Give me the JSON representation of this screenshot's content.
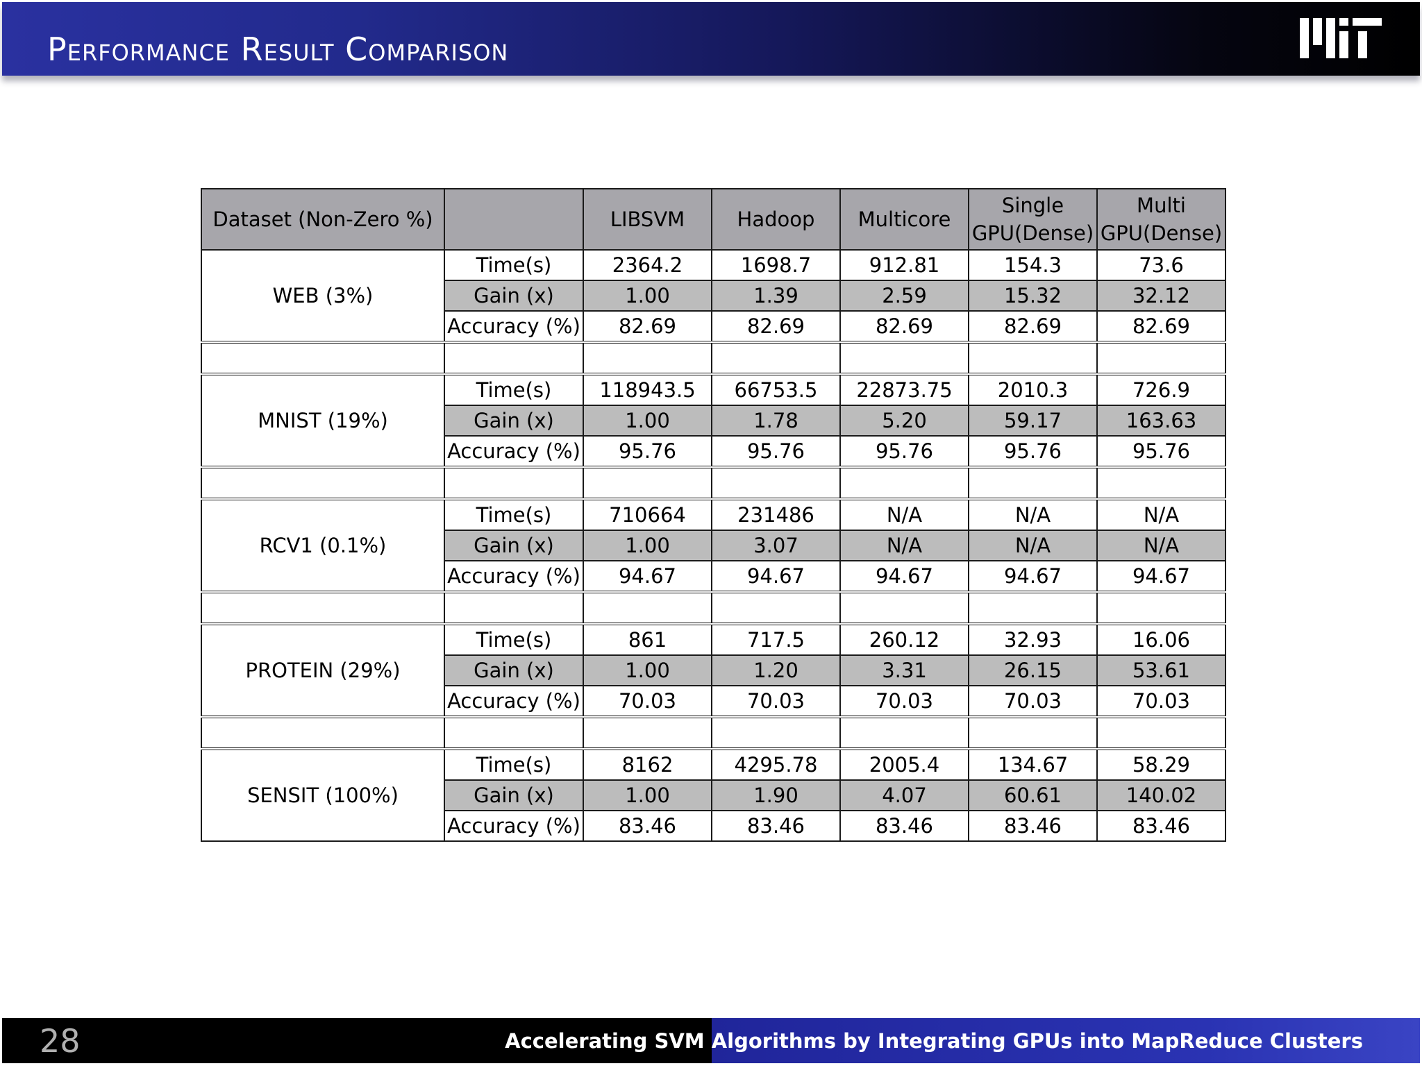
{
  "header": {
    "title": "Performance Result Comparison"
  },
  "table": {
    "headers": {
      "dataset": "Dataset (Non-Zero %)",
      "metric": "",
      "columns": [
        {
          "line1": "LIBSVM",
          "line2": ""
        },
        {
          "line1": "Hadoop",
          "line2": ""
        },
        {
          "line1": "Multicore",
          "line2": ""
        },
        {
          "line1": "Single",
          "line2": "GPU(Dense)"
        },
        {
          "line1": "Multi",
          "line2": "GPU(Dense)"
        }
      ]
    },
    "groups": [
      {
        "dataset": "WEB (3%)",
        "rows": [
          {
            "metric": "Time(s)",
            "values": [
              "2364.2",
              "1698.7",
              "912.81",
              "154.3",
              "73.6"
            ]
          },
          {
            "metric": "Gain (x)",
            "values": [
              "1.00",
              "1.39",
              "2.59",
              "15.32",
              "32.12"
            ]
          },
          {
            "metric": "Accuracy (%)",
            "values": [
              "82.69",
              "82.69",
              "82.69",
              "82.69",
              "82.69"
            ]
          }
        ]
      },
      {
        "dataset": "MNIST (19%)",
        "rows": [
          {
            "metric": "Time(s)",
            "values": [
              "118943.5",
              "66753.5",
              "22873.75",
              "2010.3",
              "726.9"
            ]
          },
          {
            "metric": "Gain (x)",
            "values": [
              "1.00",
              "1.78",
              "5.20",
              "59.17",
              "163.63"
            ]
          },
          {
            "metric": "Accuracy (%)",
            "values": [
              "95.76",
              "95.76",
              "95.76",
              "95.76",
              "95.76"
            ]
          }
        ]
      },
      {
        "dataset": "RCV1 (0.1%)",
        "rows": [
          {
            "metric": "Time(s)",
            "values": [
              "710664",
              "231486",
              "N/A",
              "N/A",
              "N/A"
            ]
          },
          {
            "metric": "Gain (x)",
            "values": [
              "1.00",
              "3.07",
              "N/A",
              "N/A",
              "N/A"
            ]
          },
          {
            "metric": "Accuracy (%)",
            "values": [
              "94.67",
              "94.67",
              "94.67",
              "94.67",
              "94.67"
            ]
          }
        ]
      },
      {
        "dataset": "PROTEIN (29%)",
        "rows": [
          {
            "metric": "Time(s)",
            "values": [
              "861",
              "717.5",
              "260.12",
              "32.93",
              "16.06"
            ]
          },
          {
            "metric": "Gain (x)",
            "values": [
              "1.00",
              "1.20",
              "3.31",
              "26.15",
              "53.61"
            ]
          },
          {
            "metric": "Accuracy (%)",
            "values": [
              "70.03",
              "70.03",
              "70.03",
              "70.03",
              "70.03"
            ]
          }
        ]
      },
      {
        "dataset": "SENSIT (100%)",
        "rows": [
          {
            "metric": "Time(s)",
            "values": [
              "8162",
              "4295.78",
              "2005.4",
              "134.67",
              "58.29"
            ]
          },
          {
            "metric": "Gain (x)",
            "values": [
              "1.00",
              "1.90",
              "4.07",
              "60.61",
              "140.02"
            ]
          },
          {
            "metric": "Accuracy (%)",
            "values": [
              "83.46",
              "83.46",
              "83.46",
              "83.46",
              "83.46"
            ]
          }
        ]
      }
    ]
  },
  "footer": {
    "page_number": "28",
    "text": "Accelerating SVM Algorithms by Integrating GPUs into MapReduce Clusters"
  },
  "colors": {
    "header_blue": "#2a31a0",
    "header_shaded": "#a7a6ab",
    "gain_row": "#bcbcbc",
    "footer_blue": "#2a33b3"
  },
  "icons": {
    "logo": "mit-logo"
  }
}
